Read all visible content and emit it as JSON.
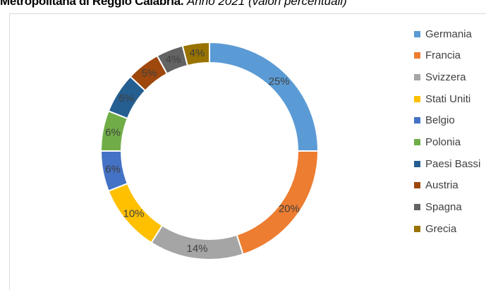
{
  "title": {
    "bold_part": "Metropolitana di Reggio Calabria.",
    "italic_part": "Anno 2021 (valori percentuali)"
  },
  "chart_data": {
    "type": "pie",
    "style": "donut",
    "categories": [
      "Germania",
      "Francia",
      "Svizzera",
      "Stati Uniti",
      "Belgio",
      "Polonia",
      "Paesi Bassi",
      "Austria",
      "Spagna",
      "Grecia"
    ],
    "values": [
      25,
      20,
      14,
      10,
      6,
      6,
      6,
      5,
      4,
      4
    ],
    "data_labels": [
      "25%",
      "20%",
      "14%",
      "10%",
      "6%",
      "6%",
      "6%",
      "5%",
      "4%",
      "4%"
    ],
    "colors": [
      "#5B9BD5",
      "#ED7D31",
      "#A5A5A5",
      "#FFC000",
      "#4472C4",
      "#70AD47",
      "#255E91",
      "#9E480E",
      "#636363",
      "#997300"
    ],
    "legend_position": "right"
  }
}
